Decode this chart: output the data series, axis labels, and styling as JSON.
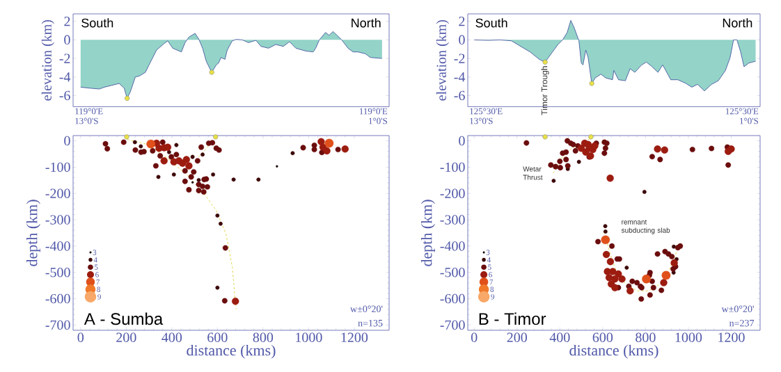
{
  "chart_data": [
    {
      "type": "area",
      "ylabel": "elevation (km)",
      "xlim": [
        -33,
        1353
      ],
      "ylim": [
        -7.2,
        2.8
      ],
      "yticks": [
        2,
        0,
        -2,
        -4,
        -6
      ],
      "tick_labels": "y",
      "annotations": [
        "South",
        "North",
        "119°0'E 13°0'S",
        "119°0'E 1°0'S"
      ],
      "series": [
        {
          "color": "#93d3c8",
          "x": [
            0,
            38,
            82,
            104,
            137,
            169,
            191,
            204,
            218,
            240,
            257,
            284,
            300,
            333,
            366,
            382,
            404,
            442,
            458,
            475,
            502,
            518,
            535,
            551,
            575,
            595,
            605,
            616,
            633,
            643,
            665,
            682,
            709,
            736,
            769,
            791,
            824,
            856,
            889,
            916,
            944,
            987,
            1020,
            1031,
            1047,
            1074,
            1090,
            1107,
            1129,
            1145,
            1173,
            1195,
            1216,
            1249,
            1271,
            1322
          ],
          "values": [
            -5.1,
            -5.2,
            -5.3,
            -5.1,
            -4.9,
            -4.7,
            -5.2,
            -6.3,
            -5.6,
            -4.0,
            -3.9,
            -3.5,
            -2.7,
            -1.1,
            -0.4,
            -0.1,
            -0.9,
            -1.3,
            -0.3,
            0.3,
            0.7,
            0.1,
            -0.9,
            -2.3,
            -3.5,
            -2.7,
            -2.5,
            -1.9,
            -2.1,
            -1.1,
            -0.1,
            0.05,
            0,
            -0.3,
            -0.05,
            -0.7,
            -0.9,
            -0.5,
            -0.7,
            -0.2,
            -0.9,
            -1.2,
            -1.3,
            -0.9,
            0,
            0.8,
            0.5,
            0.9,
            0.4,
            0,
            -0.9,
            -1.3,
            -1.3,
            -1.5,
            -1.9,
            -2.0
          ]
        },
        {
          "type": "scatter",
          "marker": "circle",
          "color": "#e8e04a",
          "x": [
            204,
            575
          ],
          "values": [
            -6.3,
            -3.5
          ]
        }
      ]
    },
    {
      "type": "area",
      "ylabel": "elevation (km)",
      "xlim": [
        -30,
        1335
      ],
      "ylim": [
        -7.2,
        2.8
      ],
      "yticks": [
        2,
        0,
        -2,
        -4,
        -6
      ],
      "tick_labels": "y",
      "annotations": [
        "South",
        "North",
        "125°30'E 13°0'S",
        "125°30'E 1°0'S",
        {
          "text": "Timor Trough",
          "x": 331,
          "y": -2.4
        }
      ],
      "series": [
        {
          "color": "#93d3c8",
          "x": [
            0,
            65,
            119,
            174,
            217,
            261,
            304,
            331,
            353,
            391,
            413,
            434,
            451,
            467,
            489,
            500,
            508,
            521,
            532,
            549,
            565,
            592,
            614,
            646,
            652,
            674,
            706,
            728,
            750,
            782,
            804,
            826,
            858,
            880,
            918,
            951,
            989,
            1016,
            1043,
            1075,
            1108,
            1140,
            1173,
            1195,
            1211,
            1227,
            1244,
            1260,
            1282,
            1314
          ],
          "values": [
            0,
            -0.05,
            0,
            -0.1,
            -0.7,
            -1.3,
            -2.1,
            -2.4,
            -1.7,
            -0.5,
            0,
            0.8,
            2.1,
            1.3,
            -0.1,
            -2.5,
            -2.7,
            -1.1,
            -1.9,
            -4.7,
            -4.1,
            -3.7,
            -4.1,
            -4.3,
            -3.3,
            -4.3,
            -4.4,
            -3.1,
            -3.5,
            -2.7,
            -2.4,
            -2.8,
            -3.5,
            -2.7,
            -4.3,
            -4.3,
            -4.7,
            -5.1,
            -4.8,
            -5.5,
            -4.8,
            -4.4,
            -3.3,
            -1.9,
            0,
            0,
            -1.3,
            -2.9,
            -2.5,
            -2.3
          ]
        },
        {
          "type": "scatter",
          "marker": "circle",
          "color": "#e8e04a",
          "x": [
            331,
            549
          ],
          "values": [
            -2.4,
            -4.7
          ]
        }
      ]
    },
    {
      "type": "bubble",
      "xlabel": "distance (kms)",
      "ylabel": "depth (km)",
      "xlim": [
        -33,
        1353
      ],
      "ylim": [
        -720,
        20
      ],
      "xticks": [
        0,
        200,
        400,
        600,
        800,
        1000,
        1200
      ],
      "yticks": [
        0,
        -100,
        -200,
        -300,
        -400,
        -500,
        -600,
        -700
      ],
      "size_legend": [
        {
          "value": 0.06,
          "label": "3"
        },
        {
          "value": 0.2,
          "label": "4"
        },
        {
          "value": 0.38,
          "label": "5"
        },
        {
          "value": 0.65,
          "label": "6"
        },
        {
          "value": 1,
          "label": "7"
        },
        {
          "value": 1.35,
          "label": "8"
        },
        {
          "value": 1.75,
          "label": "9"
        }
      ],
      "annotations": [
        "A - Sumba",
        "w±0°20'",
        "n=135"
      ],
      "series": [
        {
          "color": "#1a0505",
          "x": [
            861,
            491
          ],
          "values": [
            -97,
            -158
          ],
          "sizes": [
            0.06,
            0.06
          ]
        },
        {
          "color": "#3d0808",
          "x": [
            238,
            264,
            341,
            388,
            420,
            409,
            491,
            518,
            535,
            581,
            600,
            614,
            600,
            671,
            780,
            930
          ],
          "values": [
            -5,
            -21,
            -137,
            -43,
            -16,
            -128,
            -61,
            -149,
            -52,
            -128,
            -284,
            -315,
            -558,
            -147,
            -147,
            -47
          ],
          "sizes": [
            0.2,
            0.2,
            0.2,
            0.2,
            0.2,
            0.2,
            0.2,
            0.2,
            0.2,
            0.2,
            0.2,
            0.2,
            0.2,
            0.2,
            0.2,
            0.2
          ]
        },
        {
          "color": "#6b0d0d",
          "x": [
            109,
            117,
            189,
            240,
            265,
            278,
            316,
            360,
            349,
            330,
            398,
            420,
            458,
            496,
            485,
            458,
            475,
            513,
            529,
            542,
            551,
            518,
            535,
            556,
            518,
            540,
            562,
            578,
            595,
            607,
            635,
            632,
            976,
            1025,
            1025,
            1058,
            1129
          ],
          "values": [
            -11,
            -30,
            -5,
            -35,
            -43,
            -41,
            -38,
            -5,
            -57,
            -95,
            -61,
            -52,
            -114,
            -118,
            -137,
            -154,
            -186,
            -76,
            -24,
            -147,
            -145,
            -166,
            -173,
            -175,
            -189,
            -194,
            -9,
            -7,
            -28,
            -35,
            -407,
            -608,
            -26,
            -17,
            -33,
            -44,
            -33
          ],
          "sizes": [
            0.38,
            0.38,
            0.38,
            0.38,
            0.38,
            0.38,
            0.38,
            0.38,
            0.38,
            0.38,
            0.38,
            0.38,
            0.38,
            0.38,
            0.38,
            0.38,
            0.38,
            0.38,
            0.38,
            0.38,
            0.38,
            0.38,
            0.38,
            0.38,
            0.38,
            0.38,
            0.38,
            0.38,
            0.38,
            0.38,
            0.38,
            0.38,
            0.38,
            0.38,
            0.38,
            0.38,
            0.38
          ]
        },
        {
          "color": "#9c1c10",
          "x": [
            333,
            344,
            366,
            382,
            366,
            409,
            431,
            447,
            464,
            475,
            679,
            1055,
            1063,
            1080,
            1160
          ],
          "values": [
            -9,
            -28,
            -26,
            -24,
            -76,
            -80,
            -76,
            -85,
            -71,
            -95,
            -610,
            -3,
            -24,
            -38,
            -31
          ],
          "sizes": [
            0.65,
            0.65,
            0.65,
            0.65,
            0.65,
            0.65,
            0.65,
            0.65,
            0.65,
            0.65,
            0.65,
            0.65,
            0.65,
            0.65,
            0.65
          ]
        },
        {
          "color": "#e0501a",
          "x": [
            308,
            1090
          ],
          "values": [
            -12,
            -9
          ],
          "sizes": [
            1,
            1
          ]
        },
        {
          "color": "#f07a2a"
        },
        {
          "color": "#f8a868"
        },
        {
          "type": "line",
          "line_style": "dashed",
          "color": "#e0d850",
          "x": [
            205,
            295,
            388,
            475,
            540,
            595,
            638,
            665,
            682
          ],
          "values": [
            5,
            -14,
            -71,
            -137,
            -199,
            -265,
            -355,
            -478,
            -639
          ]
        },
        {
          "type": "line",
          "line_style": "dashed",
          "color": "#e0d850",
          "x": [
            518,
            581
          ],
          "values": [
            -61,
            0
          ]
        },
        {
          "type": "scatter",
          "marker": "circle",
          "color": "#e8e04a",
          "x": [
            202,
            592
          ],
          "values": [
            15,
            15
          ]
        }
      ]
    },
    {
      "type": "bubble",
      "xlabel": "distance (kms)",
      "ylabel": "depth (km)",
      "xlim": [
        -30,
        1335
      ],
      "ylim": [
        -720,
        20
      ],
      "xticks": [
        0,
        200,
        400,
        600,
        800,
        1000,
        1200
      ],
      "yticks": [
        0,
        -100,
        -200,
        -300,
        -400,
        -500,
        -600,
        -700
      ],
      "size_legend": [
        {
          "value": 0.06,
          "label": "3"
        },
        {
          "value": 0.2,
          "label": "4"
        },
        {
          "value": 0.38,
          "label": "5"
        },
        {
          "value": 0.65,
          "label": "6"
        },
        {
          "value": 1,
          "label": "7"
        },
        {
          "value": 1.35,
          "label": "8"
        },
        {
          "value": 1.75,
          "label": "9"
        }
      ],
      "annotations": [
        "B - Timor",
        "w±0°20'",
        "n=237",
        "remnant subducting slab",
        {
          "text": "Wetar Thrust",
          "x": 369,
          "y": -123
        }
      ],
      "series": [
        {
          "color": "#1a0505"
        },
        {
          "color": "#3d0808",
          "x": [
            371,
            437,
            489,
            795,
            612,
            613,
            712,
            931,
            945,
            932
          ],
          "values": [
            -152,
            -107,
            -80,
            -194,
            -324,
            -345,
            -482,
            -501,
            -450,
            -402
          ],
          "sizes": [
            0.2,
            0.2,
            0.2,
            0.2,
            0.2,
            0.2,
            0.2,
            0.2,
            0.2,
            0.2
          ]
        },
        {
          "color": "#6b0d0d",
          "x": [
            244,
            358,
            380,
            402,
            400,
            413,
            429,
            429,
            437,
            435,
            451,
            462,
            473,
            484,
            570,
            537,
            608,
            619,
            613,
            608,
            831,
            868,
            1019,
            1108,
            1182,
            1186,
            578,
            643,
            668,
            678,
            673,
            722,
            738,
            760,
            776,
            782,
            780,
            821,
            818,
            831,
            837,
            821,
            856,
            874,
            891,
            907,
            923,
            929,
            940,
            951,
            962
          ],
          "values": [
            -8,
            -92,
            -98,
            -102,
            -78,
            -47,
            -43,
            -71,
            -95,
            0,
            -9,
            -14,
            -38,
            -19,
            -9,
            -61,
            -5,
            -9,
            -28,
            -47,
            -60,
            -71,
            -33,
            -29,
            -24,
            -92,
            -383,
            -400,
            -449,
            -449,
            -558,
            -553,
            -534,
            -539,
            -553,
            -558,
            -601,
            -501,
            -511,
            -534,
            -558,
            -586,
            -430,
            -568,
            -421,
            -430,
            -440,
            -487,
            -478,
            -406,
            -400
          ],
          "sizes": [
            0.38,
            0.38,
            0.38,
            0.38,
            0.38,
            0.38,
            0.38,
            0.38,
            0.38,
            0.38,
            0.38,
            0.38,
            0.38,
            0.38,
            0.38,
            0.38,
            0.38,
            0.38,
            0.38,
            0.38,
            0.38,
            0.38,
            0.38,
            0.38,
            0.38,
            0.38,
            0.38,
            0.38,
            0.38,
            0.38,
            0.38,
            0.38,
            0.38,
            0.38,
            0.38,
            0.38,
            0.38,
            0.38,
            0.38,
            0.38,
            0.38,
            0.38,
            0.38,
            0.38,
            0.38,
            0.38,
            0.38,
            0.38,
            0.38,
            0.38,
            0.38
          ]
        },
        {
          "color": "#9c1c10",
          "x": [
            500,
            516,
            521,
            532,
            537,
            543,
            554,
            563,
            635,
            856,
            889,
            1186,
            1200,
            617,
            636,
            622,
            647,
            630,
            657,
            640,
            673,
            690,
            657,
            728,
            885,
            934
          ],
          "values": [
            -28,
            -9,
            -43,
            -14,
            -28,
            -57,
            -33,
            -19,
            -142,
            -31,
            -35,
            -40,
            -31,
            -432,
            -459,
            -497,
            -497,
            -520,
            -525,
            -544,
            -506,
            -525,
            -558,
            -570,
            -539,
            -464
          ],
          "sizes": [
            0.65,
            0.65,
            0.65,
            0.65,
            0.65,
            0.65,
            0.65,
            0.65,
            0.65,
            0.65,
            0.65,
            0.65,
            0.65,
            0.65,
            0.65,
            0.65,
            0.65,
            0.65,
            0.65,
            0.65,
            0.65,
            0.65,
            0.65,
            0.65,
            0.65,
            0.65
          ]
        },
        {
          "color": "#e0501a",
          "x": [
            613,
            804,
            896
          ],
          "values": [
            -376,
            -525,
            -511
          ],
          "sizes": [
            1,
            1,
            1
          ]
        },
        {
          "color": "#f07a2a"
        },
        {
          "color": "#f8a868"
        },
        {
          "type": "line",
          "line_style": "dashed",
          "color": "#e0d850",
          "x": [
            369,
            413,
            456,
            500,
            545
          ],
          "values": [
            -123,
            -61,
            -28,
            -9,
            10
          ]
        },
        {
          "type": "line",
          "line_style": "dashed",
          "color": "#e0d850",
          "x": [
            608,
            635,
            663,
            706,
            760,
            815,
            869,
            912,
            945
          ],
          "values": [
            -345,
            -430,
            -497,
            -544,
            -570,
            -570,
            -544,
            -487,
            -421
          ]
        },
        {
          "type": "scatter",
          "marker": "circle",
          "color": "#e8e04a",
          "x": [
            331,
            545
          ],
          "values": [
            15,
            15
          ]
        }
      ]
    }
  ]
}
